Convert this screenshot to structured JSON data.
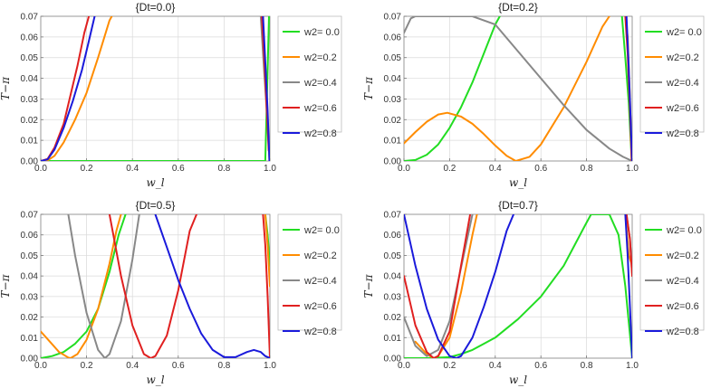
{
  "chart_data": [
    {
      "type": "line",
      "title": "{Dt=0.0}",
      "xlabel": "w_l",
      "ylabel": "T−π",
      "xlim": [
        0,
        1
      ],
      "ylim": [
        0,
        0.07
      ],
      "xticks": [
        "0.0",
        "0.2",
        "0.4",
        "0.6",
        "0.8",
        "1.0"
      ],
      "yticks": [
        "0.00",
        "0.01",
        "0.02",
        "0.03",
        "0.04",
        "0.05",
        "0.06",
        "0.07"
      ],
      "legend_position": "right",
      "series": [
        {
          "name": "w2= 0.0",
          "color": "#22dd22",
          "x": [
            0,
            0.1,
            0.3,
            0.5,
            0.7,
            0.9,
            0.98,
            0.996
          ],
          "y": [
            0,
            0,
            0,
            0,
            0,
            0,
            0,
            0.07
          ]
        },
        {
          "name": "w2=0.2",
          "color": "#ff8c00",
          "x": [
            0,
            0.03,
            0.06,
            0.1,
            0.15,
            0.2,
            0.25,
            0.3,
            0.31
          ],
          "y": [
            0,
            0.0003,
            0.0025,
            0.009,
            0.02,
            0.033,
            0.05,
            0.068,
            0.07
          ]
        },
        {
          "name": "w2=0.4",
          "color": "#888888",
          "x": [
            0.96,
            0.97,
            0.98,
            0.99,
            0.998
          ],
          "y": [
            0.07,
            0.052,
            0.035,
            0.017,
            0
          ]
        },
        {
          "name": "w2=0.6",
          "color": "#e02020",
          "x": [
            0,
            0.03,
            0.06,
            0.1,
            0.13,
            0.16,
            0.19,
            0.21
          ],
          "y": [
            0,
            0.001,
            0.0065,
            0.018,
            0.032,
            0.046,
            0.062,
            0.07
          ],
          "x2": [
            0.965,
            0.975,
            0.985,
            0.995
          ],
          "y2": [
            0.07,
            0.05,
            0.028,
            0.005
          ]
        },
        {
          "name": "w2=0.8",
          "color": "#1a1adb",
          "x": [
            0,
            0.03,
            0.06,
            0.1,
            0.14,
            0.18,
            0.21,
            0.235
          ],
          "y": [
            0,
            0.0008,
            0.0055,
            0.016,
            0.029,
            0.044,
            0.058,
            0.07
          ],
          "x2": [
            0.97,
            0.98,
            0.99,
            0.998
          ],
          "y2": [
            0.07,
            0.048,
            0.024,
            0
          ]
        }
      ]
    },
    {
      "type": "line",
      "title": "{Dt=0.2}",
      "xlabel": "w_l",
      "ylabel": "T−π",
      "xlim": [
        0,
        1
      ],
      "ylim": [
        0,
        0.07
      ],
      "xticks": [
        "0.0",
        "0.2",
        "0.4",
        "0.6",
        "0.8",
        "1.0"
      ],
      "yticks": [
        "0.00",
        "0.01",
        "0.02",
        "0.03",
        "0.04",
        "0.05",
        "0.06",
        "0.07"
      ],
      "legend_position": "right",
      "series": [
        {
          "name": "w2= 0.0",
          "color": "#22dd22",
          "x": [
            0,
            0.05,
            0.1,
            0.15,
            0.2,
            0.25,
            0.3,
            0.35,
            0.4,
            0.42
          ],
          "y": [
            0,
            0.0005,
            0.003,
            0.008,
            0.016,
            0.026,
            0.038,
            0.052,
            0.066,
            0.07
          ],
          "x2": [
            0.955,
            0.97,
            0.985,
            0.998
          ],
          "y2": [
            0.07,
            0.05,
            0.028,
            0
          ]
        },
        {
          "name": "w2=0.2",
          "color": "#ff8c00",
          "x": [
            0,
            0.05,
            0.1,
            0.15,
            0.19,
            0.25,
            0.3,
            0.35,
            0.4,
            0.45,
            0.49,
            0.55,
            0.6,
            0.7,
            0.8,
            0.87,
            0.9
          ],
          "y": [
            0.0085,
            0.014,
            0.019,
            0.0225,
            0.0233,
            0.0215,
            0.018,
            0.013,
            0.0075,
            0.0025,
            0,
            0.002,
            0.008,
            0.026,
            0.048,
            0.065,
            0.07
          ],
          "x2": [
            0.97,
            0.98,
            0.99,
            0.998
          ],
          "y2": [
            0.07,
            0.06,
            0.03,
            0
          ]
        },
        {
          "name": "w2=0.4",
          "color": "#888888",
          "x": [
            0,
            0.03,
            0.05,
            0.1,
            0.2,
            0.3,
            0.4,
            0.5,
            0.6,
            0.7,
            0.8,
            0.9,
            0.96,
            1.0
          ],
          "y": [
            0.062,
            0.069,
            0.07,
            0.07,
            0.07,
            0.07,
            0.066,
            0.053,
            0.04,
            0.027,
            0.015,
            0.006,
            0.002,
            0
          ]
        },
        {
          "name": "w2=0.6",
          "color": "#e02020",
          "x": [
            0.97,
            0.98,
            0.99,
            0.998
          ],
          "y": [
            0.07,
            0.052,
            0.025,
            0
          ]
        },
        {
          "name": "w2=0.8",
          "color": "#1a1adb",
          "x": [
            0.975,
            0.985,
            0.995,
            1.0
          ],
          "y": [
            0.07,
            0.045,
            0.015,
            0
          ]
        }
      ]
    },
    {
      "type": "line",
      "title": "{Dt=0.5}",
      "xlabel": "w_l",
      "ylabel": "T−π",
      "xlim": [
        0,
        1
      ],
      "ylim": [
        0,
        0.07
      ],
      "xticks": [
        "0.0",
        "0.2",
        "0.4",
        "0.6",
        "0.8",
        "1.0"
      ],
      "yticks": [
        "0.00",
        "0.01",
        "0.02",
        "0.03",
        "0.04",
        "0.05",
        "0.06",
        "0.07"
      ],
      "legend_position": "right",
      "series": [
        {
          "name": "w2= 0.0",
          "color": "#22dd22",
          "x": [
            0,
            0.05,
            0.1,
            0.15,
            0.2,
            0.25,
            0.3,
            0.34,
            0.37
          ],
          "y": [
            0,
            0.001,
            0.003,
            0.007,
            0.013,
            0.024,
            0.042,
            0.06,
            0.07
          ],
          "x2": [
            0.98,
            0.99,
            1.0
          ],
          "y2": [
            0.07,
            0.06,
            0.045
          ]
        },
        {
          "name": "w2=0.2",
          "color": "#ff8c00",
          "x": [
            0,
            0.04,
            0.08,
            0.12,
            0.13,
            0.16,
            0.2,
            0.25,
            0.3,
            0.33,
            0.35
          ],
          "y": [
            0.013,
            0.008,
            0.003,
            0.0003,
            0,
            0.002,
            0.009,
            0.024,
            0.046,
            0.062,
            0.07
          ],
          "x2": [
            0.98,
            0.99,
            1.0
          ],
          "y2": [
            0.07,
            0.055,
            0.035
          ]
        },
        {
          "name": "w2=0.4",
          "color": "#888888",
          "x": [
            0.12,
            0.15,
            0.2,
            0.25,
            0.28,
            0.3,
            0.35,
            0.4,
            0.43
          ],
          "y": [
            0.07,
            0.05,
            0.022,
            0.004,
            0,
            0.002,
            0.018,
            0.048,
            0.07
          ]
        },
        {
          "name": "w2=0.6",
          "color": "#e02020",
          "x": [
            0.3,
            0.35,
            0.4,
            0.45,
            0.48,
            0.5,
            0.55,
            0.6,
            0.65,
            0.68
          ],
          "y": [
            0.07,
            0.04,
            0.016,
            0.002,
            0,
            0.001,
            0.011,
            0.033,
            0.062,
            0.07
          ],
          "x2": [
            0.97,
            0.98,
            0.99,
            1.0
          ],
          "y2": [
            0.07,
            0.055,
            0.03,
            0
          ]
        },
        {
          "name": "w2=0.8",
          "color": "#1a1adb",
          "x": [
            0.5,
            0.55,
            0.6,
            0.65,
            0.7,
            0.75,
            0.8,
            0.85,
            0.9,
            0.93,
            0.96,
            0.98,
            1.0
          ],
          "y": [
            0.07,
            0.054,
            0.038,
            0.024,
            0.012,
            0.004,
            0.0005,
            0.0005,
            0.003,
            0.004,
            0.003,
            0.001,
            0
          ]
        }
      ]
    },
    {
      "type": "line",
      "title": "{Dt=0.7}",
      "xlabel": "w_l",
      "ylabel": "T−π",
      "xlim": [
        0,
        1
      ],
      "ylim": [
        0,
        0.07
      ],
      "xticks": [
        "0.0",
        "0.2",
        "0.4",
        "0.6",
        "0.8",
        "1.0"
      ],
      "yticks": [
        "0.00",
        "0.01",
        "0.02",
        "0.03",
        "0.04",
        "0.05",
        "0.06",
        "0.07"
      ],
      "legend_position": "right",
      "series": [
        {
          "name": "w2= 0.0",
          "color": "#22dd22",
          "x": [
            0,
            0.1,
            0.2,
            0.25,
            0.3,
            0.4,
            0.5,
            0.6,
            0.7,
            0.8,
            0.82,
            0.86,
            0.9,
            0.94,
            0.97,
            1.0
          ],
          "y": [
            0,
            0,
            0.0005,
            0.002,
            0.004,
            0.01,
            0.019,
            0.03,
            0.045,
            0.066,
            0.07,
            0.07,
            0.07,
            0.06,
            0.035,
            0
          ]
        },
        {
          "name": "w2=0.2",
          "color": "#ff8c00",
          "x": [
            0.05,
            0.1,
            0.13,
            0.15,
            0.2,
            0.25,
            0.3,
            0.32
          ],
          "y": [
            0.008,
            0.002,
            0,
            0.001,
            0.01,
            0.032,
            0.06,
            0.07
          ],
          "x2": [
            0.97,
            0.985,
            1.0
          ],
          "y2": [
            0.07,
            0.05,
            0.045
          ]
        },
        {
          "name": "w2=0.4",
          "color": "#888888",
          "x": [
            0,
            0.05,
            0.1,
            0.15,
            0.2,
            0.25,
            0.3
          ],
          "y": [
            0.02,
            0.006,
            0.001,
            0.004,
            0.018,
            0.044,
            0.07
          ],
          "x2": [
            0.975,
            0.99,
            1.0
          ],
          "y2": [
            0.07,
            0.058,
            0.04
          ]
        },
        {
          "name": "w2=0.6",
          "color": "#e02020",
          "x": [
            0,
            0.05,
            0.1,
            0.13,
            0.15,
            0.2,
            0.25,
            0.29
          ],
          "y": [
            0.04,
            0.016,
            0.003,
            0,
            0.001,
            0.013,
            0.045,
            0.07
          ],
          "x2": [
            0.975,
            0.99,
            1.0
          ],
          "y2": [
            0.07,
            0.058,
            0.04
          ]
        },
        {
          "name": "w2=0.8",
          "color": "#1a1adb",
          "x": [
            0,
            0.05,
            0.1,
            0.15,
            0.2,
            0.23,
            0.25,
            0.3,
            0.35,
            0.4,
            0.45,
            0.48
          ],
          "y": [
            0.07,
            0.045,
            0.024,
            0.009,
            0.001,
            0,
            0.001,
            0.01,
            0.025,
            0.042,
            0.062,
            0.07
          ],
          "x2": [
            0.97,
            0.98,
            0.99,
            1.0
          ],
          "y2": [
            0.07,
            0.05,
            0.025,
            0
          ]
        }
      ]
    }
  ]
}
